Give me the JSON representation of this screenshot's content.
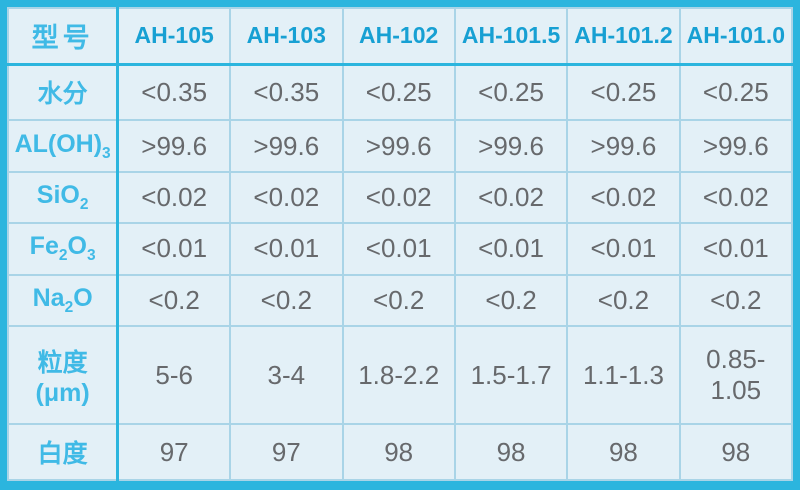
{
  "chart_data": {
    "type": "table",
    "corner_label": "型号",
    "columns": [
      "AH-105",
      "AH-103",
      "AH-102",
      "AH-101.5",
      "AH-101.2",
      "AH-101.0"
    ],
    "rows": [
      {
        "label": [
          {
            "t": "水分"
          }
        ],
        "values": [
          "<0.35",
          "<0.35",
          "<0.25",
          "<0.25",
          "<0.25",
          "<0.25"
        ]
      },
      {
        "label": [
          {
            "t": "AL(OH)"
          },
          {
            "t": "3",
            "sub": true
          }
        ],
        "values": [
          ">99.6",
          ">99.6",
          ">99.6",
          ">99.6",
          ">99.6",
          ">99.6"
        ]
      },
      {
        "label": [
          {
            "t": "SiO"
          },
          {
            "t": "2",
            "sub": true
          }
        ],
        "values": [
          "<0.02",
          "<0.02",
          "<0.02",
          "<0.02",
          "<0.02",
          "<0.02"
        ]
      },
      {
        "label": [
          {
            "t": "Fe"
          },
          {
            "t": "2",
            "sub": true
          },
          {
            "t": "O"
          },
          {
            "t": "3",
            "sub": true
          }
        ],
        "values": [
          "<0.01",
          "<0.01",
          "<0.01",
          "<0.01",
          "<0.01",
          "<0.01"
        ]
      },
      {
        "label": [
          {
            "t": "Na"
          },
          {
            "t": "2",
            "sub": true
          },
          {
            "t": "O"
          }
        ],
        "values": [
          "<0.2",
          "<0.2",
          "<0.2",
          "<0.2",
          "<0.2",
          "<0.2"
        ]
      },
      {
        "label": [
          {
            "t": "粒度(μm)"
          }
        ],
        "values": [
          "5-6",
          "3-4",
          "1.8-2.2",
          "1.5-1.7",
          "1.1-1.3",
          "0.85-1.05"
        ]
      },
      {
        "label": [
          {
            "t": "白度"
          }
        ],
        "values": [
          "97",
          "97",
          "98",
          "98",
          "98",
          "98"
        ]
      }
    ],
    "layout": {
      "grid": "on",
      "header_row": true,
      "label_column": true
    }
  },
  "colors": {
    "accent_border": "#2bb5de",
    "grid_line": "#a9d4e7",
    "cell_bg": "#e3f0f7",
    "header_text": "#17a0d3",
    "label_text": "#40bae6",
    "value_text": "#67696c"
  }
}
